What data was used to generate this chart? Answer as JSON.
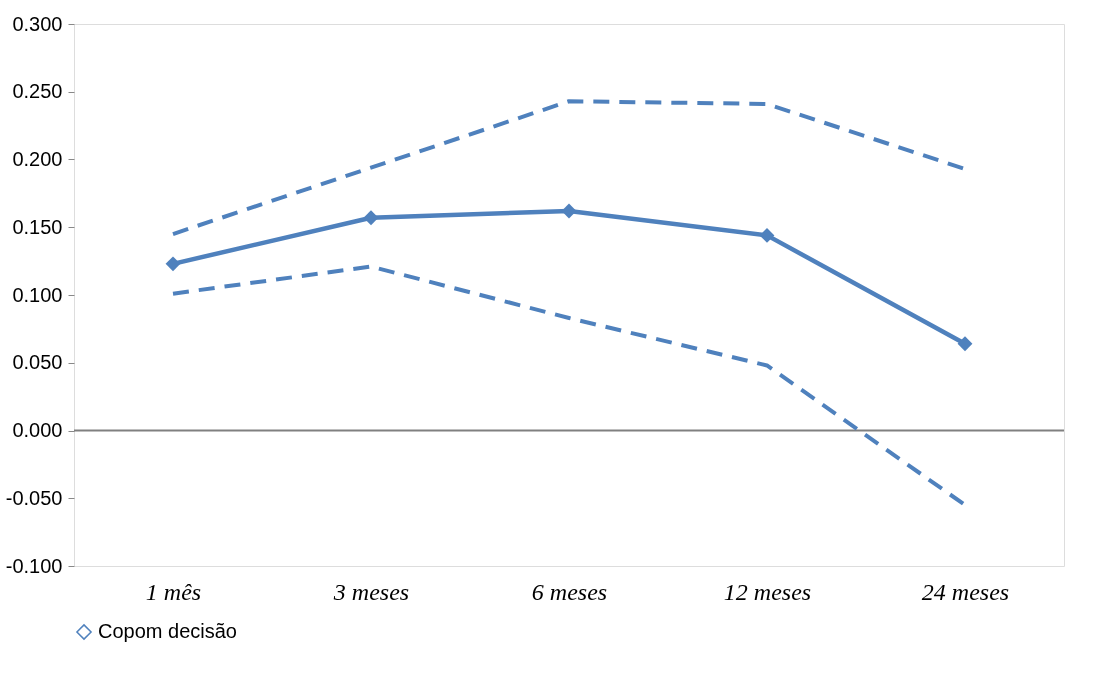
{
  "chart_data": {
    "type": "line",
    "categories": [
      "1 mês",
      "3 meses",
      "6 meses",
      "12 meses",
      "24 meses"
    ],
    "series": [
      {
        "name": "Copom decisão",
        "color": "#4f81bd",
        "values": [
          0.123,
          0.157,
          0.162,
          0.144,
          0.064
        ],
        "line_style": "solid",
        "marker": "diamond"
      },
      {
        "color": "#4f81bd",
        "values": [
          0.145,
          0.194,
          0.243,
          0.241,
          0.193
        ],
        "line_style": "dashed",
        "marker": "none"
      },
      {
        "color": "#4f81bd",
        "values": [
          0.101,
          0.121,
          0.083,
          0.048,
          -0.055
        ],
        "line_style": "dashed",
        "marker": "none"
      }
    ],
    "ylim": [
      -0.1,
      0.3
    ],
    "yticks": [
      {
        "value": -0.1,
        "label": "-0.100"
      },
      {
        "value": -0.05,
        "label": "-0.050"
      },
      {
        "value": 0,
        "label": "0.000"
      },
      {
        "value": 0.05,
        "label": "0.050"
      },
      {
        "value": 0.1,
        "label": "0.100"
      },
      {
        "value": 0.15,
        "label": "0.150"
      },
      {
        "value": 0.2,
        "label": "0.200"
      },
      {
        "value": 0.25,
        "label": "0.250"
      },
      {
        "value": 0.3,
        "label": "0.300"
      }
    ],
    "ref_lines": [
      {
        "axis": "y",
        "value": 0,
        "color": "#808080"
      }
    ],
    "grid": false,
    "legend": "bottom"
  }
}
